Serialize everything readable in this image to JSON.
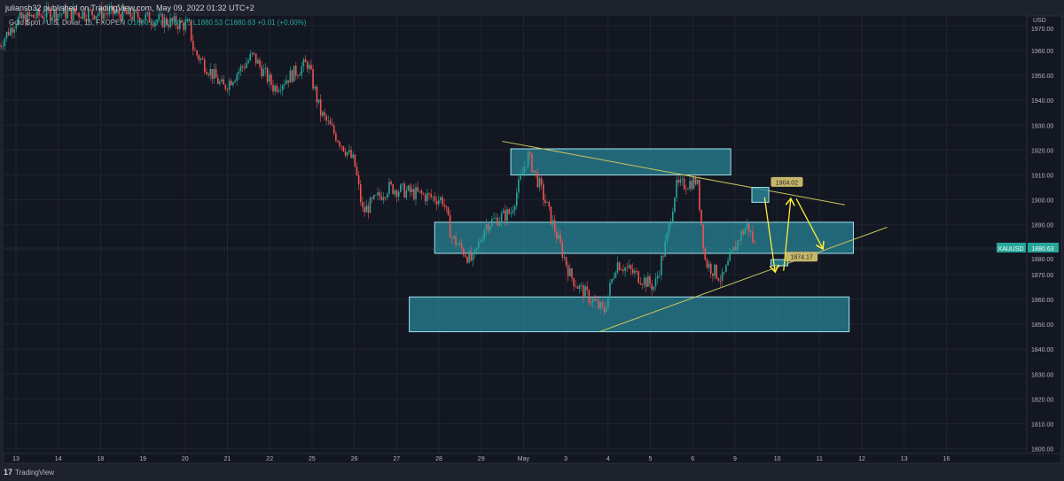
{
  "header": {
    "publisher_line": "juliansb32 published on TradingView.com, May 09, 2022 01:32 UTC+2"
  },
  "legend": {
    "symbol_desc": "Gold Spot / U.S. Dollar, 15, FXOPEN",
    "open": "O1880.60",
    "high": "H1880.75",
    "low": "L1880.53",
    "close": "C1880.63",
    "change": "+0.01 (+0.00%)"
  },
  "footer": {
    "brand": "TradingView",
    "logo_text": "17"
  },
  "colors": {
    "background": "#131722",
    "up": "#26a69a",
    "down": "#ef5350",
    "zone_fill": "#2a8a9c",
    "trendline": "#c9c45a",
    "arrow": "#ffeb3b",
    "label_bg": "#c7b76a"
  },
  "chart_data": {
    "type": "candlestick",
    "symbol": "XAUUSD",
    "currency_label": "USD",
    "last_price": "1880.63",
    "x_ticks": [
      "13",
      "14",
      "18",
      "19",
      "20",
      "21",
      "22",
      "25",
      "26",
      "27",
      "28",
      "29",
      "May",
      "3",
      "4",
      "5",
      "6",
      "9",
      "10",
      "11",
      "12",
      "13",
      "16"
    ],
    "y_ticks": [
      "1970.00",
      "1960.00",
      "1950.00",
      "1940.00",
      "1930.00",
      "1920.00",
      "1910.00",
      "1900.00",
      "1890.00",
      "1880.00",
      "1870.00",
      "1860.00",
      "1850.00",
      "1840.00",
      "1830.00",
      "1820.00",
      "1810.00",
      "1800.00"
    ],
    "ylim": [
      1800,
      1970
    ],
    "price_path_approx": [
      [
        -0.4,
        1962
      ],
      [
        0,
        1972
      ],
      [
        0.8,
        1975
      ],
      [
        2.4,
        1975
      ],
      [
        4.1,
        1970
      ],
      [
        4.2,
        1960
      ],
      [
        4.9,
        1945
      ],
      [
        5.6,
        1958
      ],
      [
        6.1,
        1945
      ],
      [
        6.9,
        1955
      ],
      [
        7.2,
        1935
      ],
      [
        8.0,
        1915
      ],
      [
        8.2,
        1895
      ],
      [
        8.8,
        1905
      ],
      [
        10.1,
        1900
      ],
      [
        10.3,
        1885
      ],
      [
        10.8,
        1875
      ],
      [
        11.1,
        1890
      ],
      [
        11.7,
        1895
      ],
      [
        12.1,
        1918
      ],
      [
        12.4,
        1905
      ],
      [
        12.7,
        1890
      ],
      [
        13.1,
        1870
      ],
      [
        13.3,
        1865
      ],
      [
        13.9,
        1855
      ],
      [
        14.2,
        1875
      ],
      [
        15.1,
        1865
      ],
      [
        15.4,
        1885
      ],
      [
        15.6,
        1905
      ],
      [
        16.1,
        1908
      ],
      [
        16.3,
        1875
      ],
      [
        16.7,
        1868
      ],
      [
        17.1,
        1885
      ],
      [
        17.3,
        1890
      ],
      [
        17.5,
        1880
      ]
    ],
    "zones": [
      {
        "from": 11.7,
        "to": 16.9,
        "high": 1920.5,
        "low": 1910
      },
      {
        "from": 9.9,
        "to": 19.8,
        "high": 1891,
        "low": 1878.5
      },
      {
        "from": 9.3,
        "to": 19.7,
        "high": 1861,
        "low": 1847
      }
    ],
    "trendlines": [
      {
        "p1": [
          11.5,
          1923.5
        ],
        "p2": [
          19.6,
          1898
        ]
      },
      {
        "p1": [
          13.8,
          1847
        ],
        "p2": [
          20.6,
          1889
        ]
      }
    ],
    "marker_boxes": [
      {
        "from": 17.4,
        "to": 17.8,
        "high": 1905,
        "low": 1899
      },
      {
        "from": 17.85,
        "to": 18.25,
        "high": 1876,
        "low": 1873.5
      }
    ],
    "price_labels": [
      {
        "text": "1904.02",
        "at": [
          17.85,
          1907
        ]
      },
      {
        "text": "1874.17",
        "at": [
          18.2,
          1877
        ]
      }
    ],
    "projection_arrows": [
      [
        [
          17.7,
          1901
        ],
        [
          17.95,
          1871
        ]
      ],
      [
        [
          18.15,
          1871.5
        ],
        [
          18.32,
          1900.5
        ]
      ],
      [
        [
          18.45,
          1900.5
        ],
        [
          19.08,
          1880.3
        ]
      ]
    ]
  }
}
